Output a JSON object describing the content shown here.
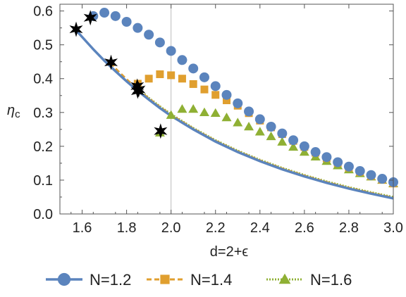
{
  "chart_data": {
    "type": "scatter",
    "title": "",
    "xlabel": "d=2+ϵ",
    "ylabel_main": "η",
    "ylabel_sub": "c",
    "xlim": [
      1.5,
      3.0
    ],
    "ylim": [
      0.0,
      0.62
    ],
    "xticks": [
      1.6,
      1.8,
      2.0,
      2.2,
      2.4,
      2.6,
      2.8,
      3.0
    ],
    "yticks": [
      0.0,
      0.1,
      0.2,
      0.3,
      0.4,
      0.5,
      0.6
    ],
    "vertical_reference_x": 2.0,
    "grid": false,
    "legend_position": "bottom",
    "colors": {
      "N=1.2": "#5b84bd",
      "N=1.4": "#e09f2f",
      "N=1.6": "#8fb034",
      "stars": "#000000",
      "frame": "#555555",
      "reference_line": "#bbbbbb"
    },
    "series": [
      {
        "name": "N=1.2",
        "marker": "circle",
        "line_style": "solid",
        "points": [
          [
            1.65,
            0.585
          ],
          [
            1.7,
            0.595
          ],
          [
            1.75,
            0.585
          ],
          [
            1.8,
            0.568
          ],
          [
            1.85,
            0.55
          ],
          [
            1.9,
            0.53
          ],
          [
            1.95,
            0.507
          ],
          [
            2.0,
            0.482
          ],
          [
            2.05,
            0.455
          ],
          [
            2.1,
            0.43
          ],
          [
            2.15,
            0.404
          ],
          [
            2.2,
            0.378
          ],
          [
            2.25,
            0.352
          ],
          [
            2.3,
            0.327
          ],
          [
            2.35,
            0.303
          ],
          [
            2.4,
            0.28
          ],
          [
            2.45,
            0.258
          ],
          [
            2.5,
            0.238
          ],
          [
            2.55,
            0.218
          ],
          [
            2.6,
            0.2
          ],
          [
            2.65,
            0.183
          ],
          [
            2.7,
            0.168
          ],
          [
            2.75,
            0.153
          ],
          [
            2.8,
            0.14
          ],
          [
            2.85,
            0.127
          ],
          [
            2.9,
            0.115
          ],
          [
            2.95,
            0.104
          ],
          [
            3.0,
            0.094
          ]
        ],
        "curve": [
          [
            1.57,
            0.545
          ],
          [
            1.65,
            0.487
          ],
          [
            1.7,
            0.453
          ],
          [
            1.75,
            0.422
          ],
          [
            1.8,
            0.392
          ],
          [
            1.85,
            0.364
          ],
          [
            1.9,
            0.338
          ],
          [
            1.95,
            0.313
          ],
          [
            2.0,
            0.29
          ],
          [
            2.1,
            0.25
          ],
          [
            2.2,
            0.214
          ],
          [
            2.3,
            0.183
          ],
          [
            2.4,
            0.156
          ],
          [
            2.5,
            0.132
          ],
          [
            2.6,
            0.111
          ],
          [
            2.7,
            0.092
          ],
          [
            2.8,
            0.075
          ],
          [
            2.9,
            0.06
          ],
          [
            3.0,
            0.046
          ]
        ]
      },
      {
        "name": "N=1.4",
        "marker": "square",
        "line_style": "dashed",
        "points": [
          [
            1.85,
            0.385
          ],
          [
            1.9,
            0.4
          ],
          [
            1.95,
            0.413
          ],
          [
            2.0,
            0.41
          ],
          [
            2.05,
            0.4
          ],
          [
            2.1,
            0.384
          ],
          [
            2.15,
            0.368
          ],
          [
            2.2,
            0.352
          ],
          [
            2.25,
            0.336
          ],
          [
            2.3,
            0.32
          ],
          [
            2.35,
            0.298
          ],
          [
            2.4,
            0.276
          ],
          [
            2.45,
            0.256
          ],
          [
            2.5,
            0.236
          ],
          [
            2.55,
            0.216
          ],
          [
            2.6,
            0.198
          ],
          [
            2.65,
            0.181
          ],
          [
            2.7,
            0.165
          ],
          [
            2.75,
            0.151
          ],
          [
            2.8,
            0.137
          ],
          [
            2.85,
            0.124
          ],
          [
            2.9,
            0.112
          ],
          [
            2.95,
            0.101
          ],
          [
            3.0,
            0.09
          ]
        ],
        "curve": [
          [
            1.73,
            0.448
          ],
          [
            1.75,
            0.43
          ],
          [
            1.8,
            0.398
          ],
          [
            1.85,
            0.368
          ],
          [
            1.9,
            0.341
          ],
          [
            1.95,
            0.316
          ],
          [
            2.0,
            0.293
          ],
          [
            2.1,
            0.252
          ],
          [
            2.2,
            0.216
          ],
          [
            2.3,
            0.185
          ],
          [
            2.4,
            0.158
          ],
          [
            2.5,
            0.134
          ],
          [
            2.6,
            0.113
          ],
          [
            2.7,
            0.094
          ],
          [
            2.8,
            0.077
          ],
          [
            2.9,
            0.062
          ],
          [
            3.0,
            0.048
          ]
        ]
      },
      {
        "name": "N=1.6",
        "marker": "triangle",
        "line_style": "dotted",
        "points": [
          [
            1.95,
            0.24
          ],
          [
            2.0,
            0.292
          ],
          [
            2.05,
            0.31
          ],
          [
            2.1,
            0.31
          ],
          [
            2.15,
            0.3
          ],
          [
            2.2,
            0.298
          ],
          [
            2.25,
            0.285
          ],
          [
            2.3,
            0.27
          ],
          [
            2.35,
            0.258
          ],
          [
            2.4,
            0.243
          ],
          [
            2.45,
            0.229
          ],
          [
            2.5,
            0.213
          ],
          [
            2.55,
            0.198
          ],
          [
            2.6,
            0.183
          ],
          [
            2.65,
            0.169
          ],
          [
            2.7,
            0.156
          ],
          [
            2.75,
            0.143
          ],
          [
            2.8,
            0.131
          ],
          [
            2.85,
            0.12
          ],
          [
            2.9,
            0.11
          ],
          [
            2.95,
            0.1
          ],
          [
            3.0,
            0.09
          ]
        ],
        "curve": [
          [
            1.85,
            0.37
          ],
          [
            1.9,
            0.343
          ],
          [
            1.95,
            0.318
          ],
          [
            2.0,
            0.295
          ],
          [
            2.1,
            0.254
          ],
          [
            2.2,
            0.218
          ],
          [
            2.3,
            0.187
          ],
          [
            2.4,
            0.16
          ],
          [
            2.5,
            0.136
          ],
          [
            2.6,
            0.115
          ],
          [
            2.7,
            0.096
          ],
          [
            2.8,
            0.079
          ],
          [
            2.9,
            0.064
          ],
          [
            3.0,
            0.05
          ]
        ]
      }
    ],
    "star_markers": [
      [
        1.573,
        0.546
      ],
      [
        1.637,
        0.58
      ],
      [
        1.73,
        0.448
      ],
      [
        1.848,
        0.378
      ],
      [
        1.85,
        0.363
      ],
      [
        1.855,
        0.368
      ],
      [
        1.953,
        0.245
      ]
    ]
  }
}
